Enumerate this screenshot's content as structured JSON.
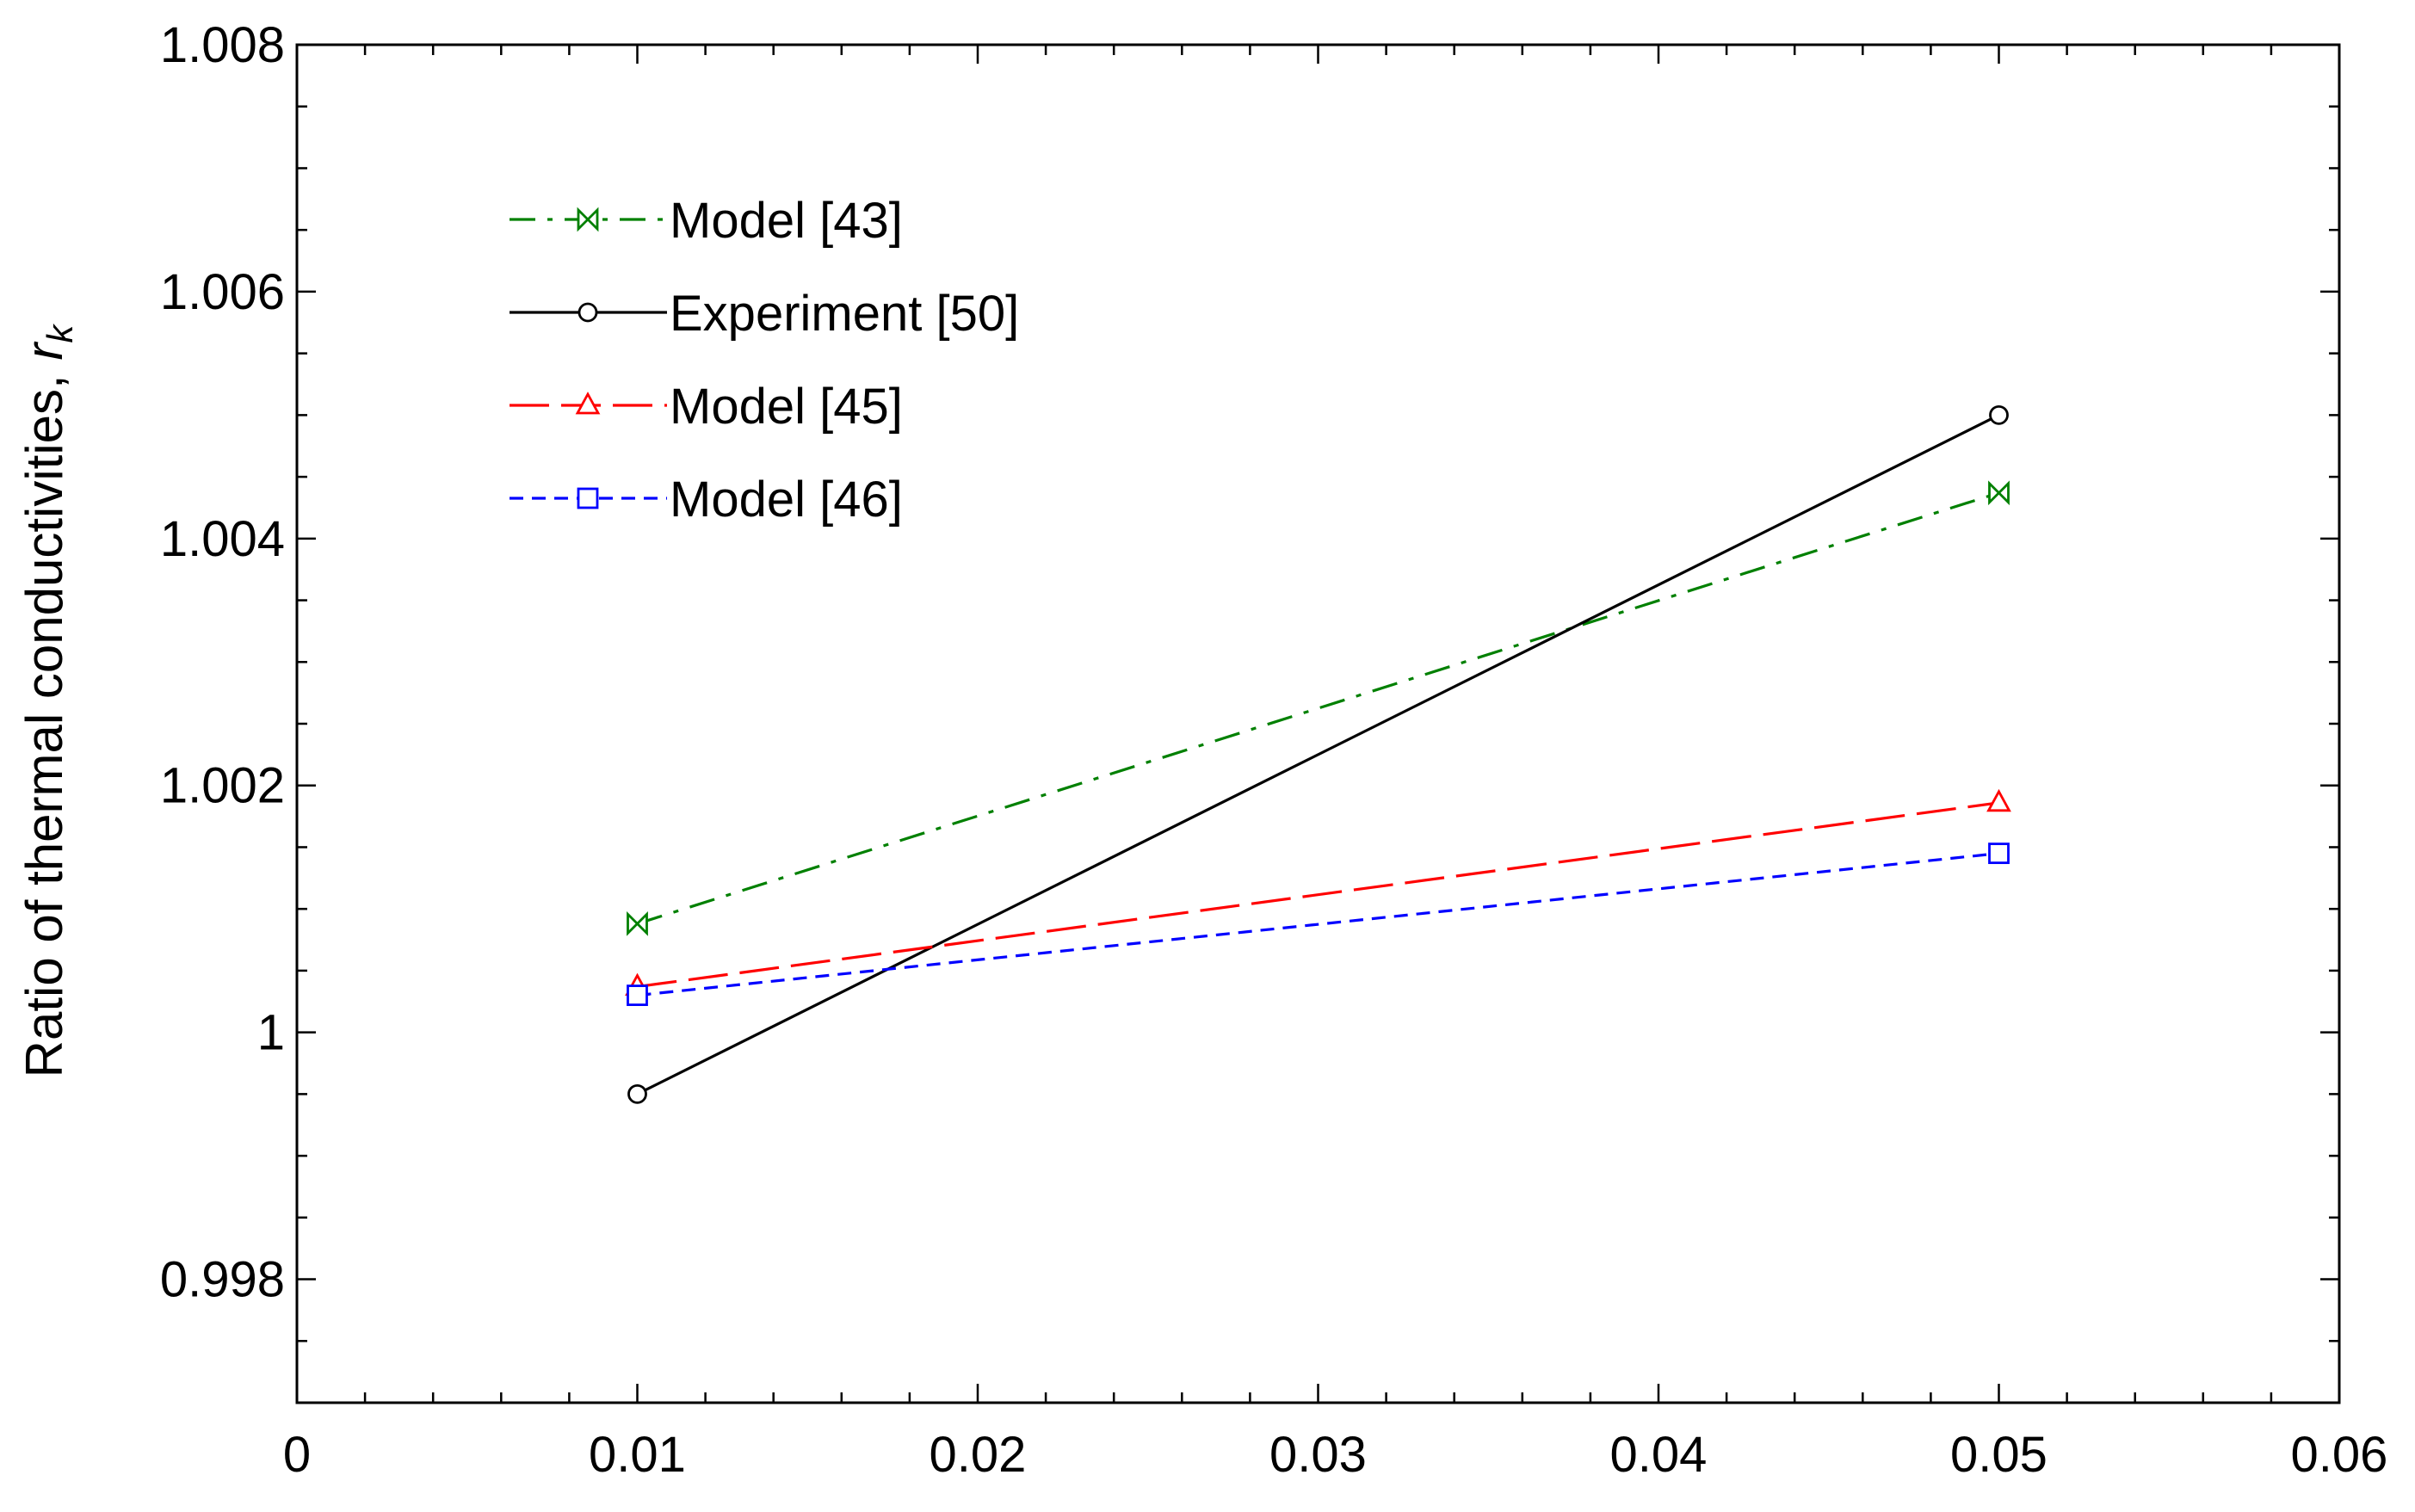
{
  "chart_data": {
    "type": "line",
    "title": "",
    "xlabel": "",
    "ylabel": "Ratio of thermal conductivities, ",
    "ylabel_symbol": "r",
    "ylabel_subscript": "k",
    "xlim": [
      0,
      0.06
    ],
    "ylim": [
      0.997,
      1.008
    ],
    "x_ticks": [
      0,
      0.01,
      0.02,
      0.03,
      0.04,
      0.05,
      0.06
    ],
    "x_tick_labels": [
      "0",
      "0.01",
      "0.02",
      "0.03",
      "0.04",
      "0.05",
      "0.06"
    ],
    "x_minor_step": 0.002,
    "y_ticks": [
      0.998,
      1,
      1.002,
      1.004,
      1.006,
      1.008
    ],
    "y_tick_labels": [
      "0.998",
      "1",
      "1.002",
      "1.004",
      "1.006",
      "1.008"
    ],
    "y_minor_step": 0.0005,
    "grid": false,
    "legend_position": "top-left",
    "series": [
      {
        "name": "Model [43]",
        "label": "Model [43]",
        "x": [
          0.01,
          0.05
        ],
        "values": [
          1.00088,
          1.00437
        ],
        "color": "#008000",
        "dash": "dashdot",
        "marker": "bowtie"
      },
      {
        "name": "Experiment [50]",
        "label": "Experiment [50]",
        "x": [
          0.01,
          0.05
        ],
        "values": [
          0.9995,
          1.005
        ],
        "color": "#000000",
        "dash": "solid",
        "marker": "circle"
      },
      {
        "name": "Model [45]",
        "label": "Model [45]",
        "x": [
          0.01,
          0.05
        ],
        "values": [
          1.00037,
          1.00186
        ],
        "color": "#ff0000",
        "dash": "longdash",
        "marker": "triangle"
      },
      {
        "name": "Model [46]",
        "label": "Model [46]",
        "x": [
          0.01,
          0.05
        ],
        "values": [
          1.0003,
          1.00145
        ],
        "color": "#0000ff",
        "dash": "shortdash",
        "marker": "square"
      }
    ]
  }
}
